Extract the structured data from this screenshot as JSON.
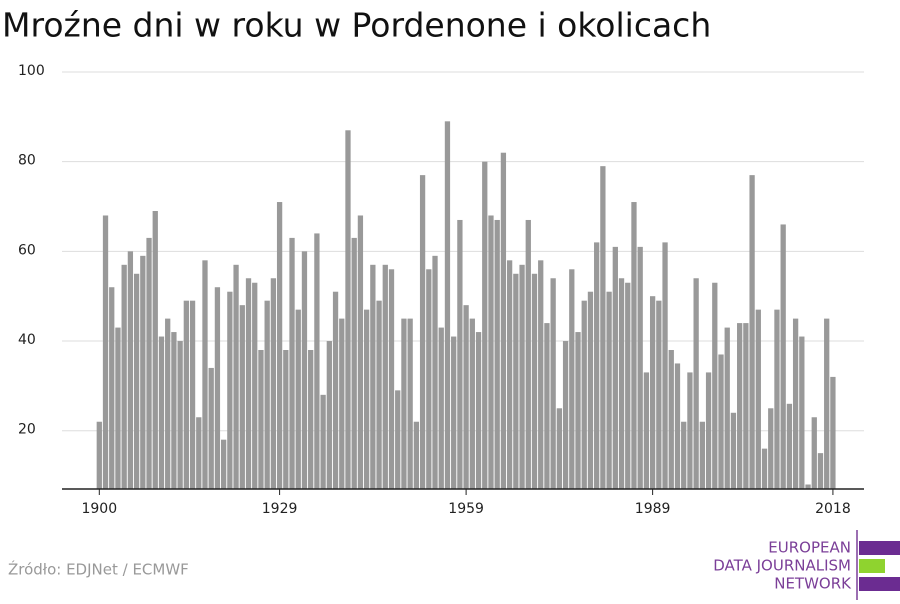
{
  "chart_data": {
    "type": "bar",
    "title": "Mroźne dni w roku w Pordenone i okolicach",
    "source": "Źródło: EDJNet / ECMWF",
    "x": [
      1900,
      1901,
      1902,
      1903,
      1904,
      1905,
      1906,
      1907,
      1908,
      1909,
      1910,
      1911,
      1912,
      1913,
      1914,
      1915,
      1916,
      1917,
      1918,
      1919,
      1920,
      1921,
      1922,
      1923,
      1924,
      1925,
      1926,
      1927,
      1928,
      1929,
      1930,
      1931,
      1932,
      1933,
      1934,
      1935,
      1936,
      1937,
      1938,
      1939,
      1940,
      1941,
      1942,
      1943,
      1944,
      1945,
      1946,
      1947,
      1948,
      1949,
      1950,
      1951,
      1952,
      1953,
      1954,
      1955,
      1956,
      1957,
      1958,
      1959,
      1960,
      1961,
      1962,
      1963,
      1964,
      1965,
      1966,
      1967,
      1968,
      1969,
      1970,
      1971,
      1972,
      1973,
      1974,
      1975,
      1976,
      1977,
      1978,
      1979,
      1980,
      1981,
      1982,
      1983,
      1984,
      1985,
      1986,
      1987,
      1988,
      1989,
      1990,
      1991,
      1992,
      1993,
      1994,
      1995,
      1996,
      1997,
      1998,
      1999,
      2000,
      2001,
      2002,
      2003,
      2004,
      2005,
      2006,
      2007,
      2008,
      2009,
      2010,
      2011,
      2012,
      2013,
      2014,
      2015,
      2016,
      2017,
      2018
    ],
    "values": [
      22,
      68,
      52,
      43,
      57,
      60,
      55,
      59,
      63,
      69,
      41,
      45,
      42,
      40,
      49,
      49,
      23,
      58,
      34,
      52,
      18,
      51,
      57,
      48,
      54,
      53,
      38,
      49,
      54,
      71,
      38,
      63,
      47,
      60,
      38,
      64,
      28,
      40,
      51,
      45,
      87,
      63,
      68,
      47,
      57,
      49,
      57,
      56,
      29,
      45,
      45,
      22,
      77,
      56,
      59,
      43,
      89,
      41,
      67,
      48,
      45,
      42,
      80,
      68,
      67,
      82,
      58,
      55,
      57,
      67,
      55,
      58,
      44,
      54,
      25,
      40,
      56,
      42,
      49,
      51,
      62,
      79,
      51,
      61,
      54,
      53,
      71,
      61,
      33,
      50,
      49,
      62,
      38,
      35,
      22,
      33,
      54,
      22,
      33,
      53,
      37,
      43,
      24,
      44,
      44,
      77,
      47,
      16,
      25,
      47,
      66,
      26,
      45,
      41,
      8,
      23,
      15,
      45,
      32
    ],
    "color": "#999999",
    "xlim": [
      1894,
      2023
    ],
    "xticks": [
      1900,
      1929,
      1959,
      1989,
      2018
    ],
    "ylim": [
      7,
      100
    ],
    "yticks": [
      20,
      40,
      60,
      80,
      100
    ],
    "grid": true
  },
  "logo": {
    "lines": [
      "EUROPEAN",
      "DATA JOURNALISM",
      "NETWORK"
    ]
  }
}
